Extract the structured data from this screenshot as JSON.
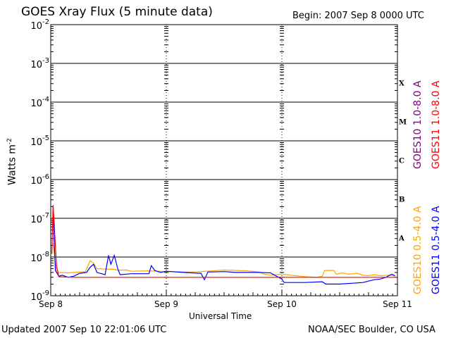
{
  "header": {
    "title": "GOES Xray Flux (5 minute data)",
    "begin": "Begin:  2007 Sep 8 0000 UTC"
  },
  "footer": {
    "updated": "Updated 2007 Sep 10 22:01:06 UTC",
    "credit": "NOAA/SEC Boulder, CO USA"
  },
  "chart_data": {
    "type": "line",
    "title": "GOES Xray Flux (5 minute data)",
    "xlabel": "Universal Time",
    "ylabel": "Watts m",
    "ylabel_sup": "-2",
    "x_unit": "days since 2007 Sep 8 0000 UTC",
    "xlim": [
      0,
      3
    ],
    "ylim": [
      1e-09,
      0.01
    ],
    "yscale": "log",
    "grid": true,
    "x_ticks": [
      {
        "label": "Sep 8",
        "x": 0
      },
      {
        "label": "Sep 9",
        "x": 1
      },
      {
        "label": "Sep 10",
        "x": 2
      },
      {
        "label": "Sep 11",
        "x": 3
      }
    ],
    "y_ticks": [
      {
        "base": "10",
        "exp": "-9",
        "value": 1e-09
      },
      {
        "base": "10",
        "exp": "-8",
        "value": 1e-08
      },
      {
        "base": "10",
        "exp": "-7",
        "value": 1e-07
      },
      {
        "base": "10",
        "exp": "-6",
        "value": 1e-06
      },
      {
        "base": "10",
        "exp": "-5",
        "value": 1e-05
      },
      {
        "base": "10",
        "exp": "-4",
        "value": 0.0001
      },
      {
        "base": "10",
        "exp": "-3",
        "value": 0.001
      },
      {
        "base": "10",
        "exp": "-2",
        "value": 0.01
      }
    ],
    "flare_classes": [
      {
        "label": "A",
        "value": 3.16e-08
      },
      {
        "label": "B",
        "value": 3.16e-07
      },
      {
        "label": "C",
        "value": 3.16e-06
      },
      {
        "label": "M",
        "value": 3.16e-05
      },
      {
        "label": "X",
        "value": 0.000316
      }
    ],
    "series": [
      {
        "name": "GOES10 0.5-4.0 A",
        "color": "#ffa500",
        "points": [
          [
            0.02,
            2.3e-08
          ],
          [
            0.05,
            4e-09
          ],
          [
            0.15,
            3.9e-09
          ],
          [
            0.3,
            4.2e-09
          ],
          [
            0.34,
            8e-09
          ],
          [
            0.37,
            7e-09
          ],
          [
            0.4,
            5e-09
          ],
          [
            0.55,
            4.8e-09
          ],
          [
            0.57,
            4.6e-09
          ],
          [
            0.65,
            4.6e-09
          ],
          [
            0.7,
            4.3e-09
          ],
          [
            0.85,
            4.4e-09
          ],
          [
            1.0,
            4.2e-09
          ],
          [
            1.2,
            4.1e-09
          ],
          [
            1.3,
            4.2e-09
          ],
          [
            1.5,
            4.6e-09
          ],
          [
            1.7,
            4.4e-09
          ],
          [
            1.8,
            4.1e-09
          ],
          [
            1.85,
            3.6e-09
          ],
          [
            1.9,
            3.4e-09
          ],
          [
            2.0,
            3.6e-09
          ],
          [
            2.2,
            3.1e-09
          ],
          [
            2.3,
            3e-09
          ],
          [
            2.35,
            3.2e-09
          ],
          [
            2.37,
            4.5e-09
          ],
          [
            2.45,
            4.5e-09
          ],
          [
            2.47,
            3.6e-09
          ],
          [
            2.52,
            3.9e-09
          ],
          [
            2.58,
            3.6e-09
          ],
          [
            2.65,
            3.8e-09
          ],
          [
            2.7,
            3.4e-09
          ],
          [
            2.75,
            3.3e-09
          ],
          [
            2.8,
            3.5e-09
          ],
          [
            2.85,
            3.3e-09
          ],
          [
            2.93,
            3.4e-09
          ],
          [
            2.98,
            3.2e-09
          ]
        ]
      },
      {
        "name": "GOES11 0.5-4.0 A",
        "color": "#0000ff",
        "points": [
          [
            0.02,
            1.2e-07
          ],
          [
            0.04,
            4.5e-09
          ],
          [
            0.07,
            3.2e-09
          ],
          [
            0.1,
            3.4e-09
          ],
          [
            0.15,
            3e-09
          ],
          [
            0.2,
            3.2e-09
          ],
          [
            0.25,
            3.8e-09
          ],
          [
            0.31,
            4e-09
          ],
          [
            0.34,
            5.4e-09
          ],
          [
            0.37,
            6.5e-09
          ],
          [
            0.4,
            4e-09
          ],
          [
            0.47,
            3.5e-09
          ],
          [
            0.5,
            1.1e-08
          ],
          [
            0.52,
            6.5e-09
          ],
          [
            0.55,
            1.1e-08
          ],
          [
            0.58,
            5e-09
          ],
          [
            0.6,
            3.5e-09
          ],
          [
            0.7,
            3.7e-09
          ],
          [
            0.85,
            3.7e-09
          ],
          [
            0.87,
            6e-09
          ],
          [
            0.9,
            4.5e-09
          ],
          [
            0.95,
            4e-09
          ],
          [
            1.0,
            4.3e-09
          ],
          [
            1.15,
            4e-09
          ],
          [
            1.3,
            3.8e-09
          ],
          [
            1.33,
            2.6e-09
          ],
          [
            1.36,
            4.1e-09
          ],
          [
            1.5,
            4.2e-09
          ],
          [
            1.6,
            4e-09
          ],
          [
            1.8,
            4e-09
          ],
          [
            1.9,
            3.9e-09
          ],
          [
            2.0,
            2.7e-09
          ],
          [
            2.02,
            2.2e-09
          ],
          [
            2.2,
            2.2e-09
          ],
          [
            2.35,
            2.3e-09
          ],
          [
            2.38,
            2e-09
          ],
          [
            2.5,
            2e-09
          ],
          [
            2.6,
            2.1e-09
          ],
          [
            2.7,
            2.2e-09
          ],
          [
            2.8,
            2.6e-09
          ],
          [
            2.85,
            2.7e-09
          ],
          [
            2.9,
            3e-09
          ],
          [
            2.95,
            3.6e-09
          ],
          [
            2.98,
            3.3e-09
          ]
        ]
      },
      {
        "name": "GOES10 1.0-8.0 A",
        "color": "#800080",
        "points": []
      },
      {
        "name": "GOES11 1.0-8.0 A",
        "color": "#ff0000",
        "points": [
          [
            0.01,
            1.2e-08
          ],
          [
            0.02,
            2.2e-07
          ],
          [
            0.03,
            8e-08
          ],
          [
            0.04,
            2e-08
          ],
          [
            0.05,
            6e-09
          ],
          [
            0.07,
            3.1e-09
          ],
          [
            0.2,
            3e-09
          ],
          [
            0.5,
            3e-09
          ],
          [
            1.0,
            3e-09
          ],
          [
            2.0,
            3e-09
          ],
          [
            3.0,
            3e-09
          ]
        ]
      }
    ]
  }
}
